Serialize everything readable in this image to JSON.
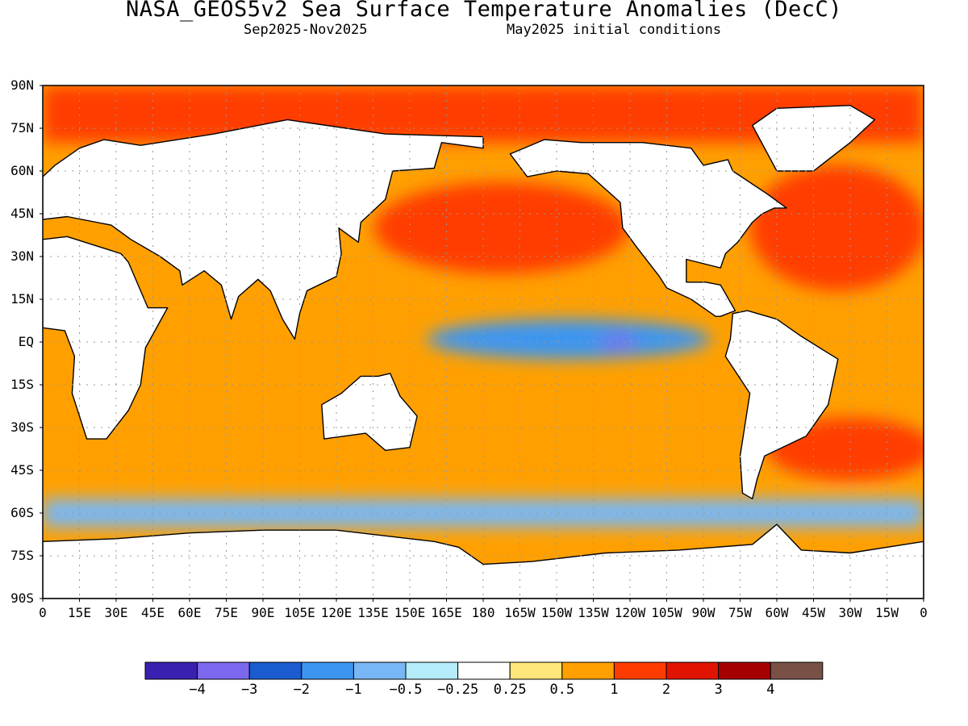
{
  "header": {
    "title": "NASA_GEOS5v2 Sea Surface Temperature Anomalies (DecC)",
    "period": "Sep2025-Nov2025",
    "init": "May2025 initial conditions"
  },
  "axes": {
    "lat_labels": [
      "90N",
      "75N",
      "60N",
      "45N",
      "30N",
      "15N",
      "EQ",
      "15S",
      "30S",
      "45S",
      "60S",
      "75S",
      "90S"
    ],
    "lat_values": [
      90,
      75,
      60,
      45,
      30,
      15,
      0,
      -15,
      -30,
      -45,
      -60,
      -75,
      -90
    ],
    "lon_labels": [
      "0",
      "15E",
      "30E",
      "45E",
      "60E",
      "75E",
      "90E",
      "105E",
      "120E",
      "135E",
      "150E",
      "165E",
      "180",
      "165W",
      "150W",
      "135W",
      "120W",
      "105W",
      "90W",
      "75W",
      "60W",
      "45W",
      "30W",
      "15W",
      "0"
    ],
    "lon_values": [
      0,
      15,
      30,
      45,
      60,
      75,
      90,
      105,
      120,
      135,
      150,
      165,
      180,
      195,
      210,
      225,
      240,
      255,
      270,
      285,
      300,
      315,
      330,
      345,
      360
    ]
  },
  "colorbar": {
    "colors": [
      "#3a20b0",
      "#7b68ee",
      "#1a5ccf",
      "#3c96f0",
      "#78b7f5",
      "#b4ecfa",
      "#ffffff",
      "#ffe67a",
      "#ffa000",
      "#ff3c00",
      "#e01400",
      "#a50000",
      "#785046"
    ],
    "labels": [
      "-4",
      "-3",
      "-2",
      "-1",
      "-0.5",
      "-0.25",
      "0.25",
      "0.5",
      "1",
      "2",
      "3",
      "4"
    ]
  },
  "chart_data": {
    "type": "heatmap",
    "variable": "Sea Surface Temperature Anomalies (DecC)",
    "model": "NASA_GEOS5v2",
    "period": "Sep2025-Nov2025",
    "initial_conditions": "May2025",
    "lon_range": [
      0,
      360
    ],
    "lat_range": [
      -90,
      90
    ],
    "grid": "dotted",
    "levels": [
      -4,
      -3,
      -2,
      -1,
      -0.5,
      -0.25,
      0.25,
      0.5,
      1,
      2,
      3,
      4
    ],
    "land_color": "#ffffff",
    "features": [
      {
        "name": "equatorial-east-pacific-cool",
        "lon": [
          155,
          275
        ],
        "lat": [
          -8,
          10
        ],
        "value": -1.5,
        "shape": "ellipse",
        "r": [
          58,
          7
        ]
      },
      {
        "name": "nino-core",
        "lon": [
          230,
          240
        ],
        "lat": [
          -1,
          1
        ],
        "value": -3,
        "shape": "ellipse",
        "r": [
          8,
          2.2
        ]
      },
      {
        "name": "north-pacific-warm",
        "lon": [
          130,
          245
        ],
        "lat": [
          20,
          60
        ],
        "value": 2,
        "shape": "ellipse",
        "r": [
          52,
          16
        ]
      },
      {
        "name": "north-atlantic-warm",
        "lon": [
          290,
          360
        ],
        "lat": [
          15,
          65
        ],
        "value": 2,
        "shape": "ellipse",
        "r": [
          36,
          22
        ]
      },
      {
        "name": "south-atlantic-warm",
        "lon": [
          300,
          360
        ],
        "lat": [
          -50,
          -25
        ],
        "value": 2,
        "shape": "ellipse",
        "r": [
          34,
          11
        ]
      },
      {
        "name": "southern-ocean-cool",
        "lon": [
          0,
          360
        ],
        "lat": [
          -65,
          -55
        ],
        "value": -0.5,
        "shape": "band"
      },
      {
        "name": "tropical-indian-warm",
        "lon": [
          40,
          120
        ],
        "lat": [
          -30,
          15
        ],
        "value": 1,
        "shape": "ellipse",
        "r": [
          40,
          20
        ]
      },
      {
        "name": "arctic-warm",
        "lon": [
          0,
          360
        ],
        "lat": [
          70,
          90
        ],
        "value": 1.5,
        "shape": "band"
      }
    ]
  }
}
